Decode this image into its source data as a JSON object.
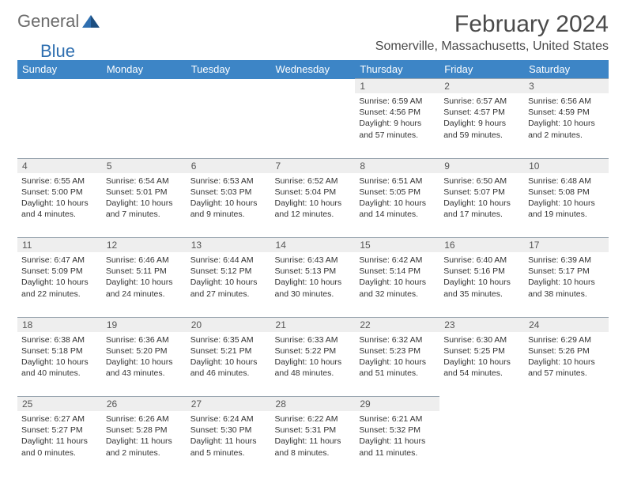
{
  "brand": {
    "part1": "General",
    "part2": "Blue"
  },
  "title": "February 2024",
  "location": "Somerville, Massachusetts, United States",
  "colors": {
    "header_bg": "#3d85c6",
    "header_fg": "#ffffff",
    "daynum_bg": "#eeeeee",
    "daynum_fg": "#555555",
    "sep": "#3d85c6",
    "daynum_border": "#9aa6b0",
    "text": "#333333",
    "title_color": "#4a4a4a",
    "logo_gray": "#6b6b6b",
    "logo_blue": "#2f6fb0"
  },
  "dow": [
    "Sunday",
    "Monday",
    "Tuesday",
    "Wednesday",
    "Thursday",
    "Friday",
    "Saturday"
  ],
  "weeks": [
    [
      null,
      null,
      null,
      null,
      {
        "n": "1",
        "sr": "Sunrise: 6:59 AM",
        "ss": "Sunset: 4:56 PM",
        "dl": "Daylight: 9 hours and 57 minutes."
      },
      {
        "n": "2",
        "sr": "Sunrise: 6:57 AM",
        "ss": "Sunset: 4:57 PM",
        "dl": "Daylight: 9 hours and 59 minutes."
      },
      {
        "n": "3",
        "sr": "Sunrise: 6:56 AM",
        "ss": "Sunset: 4:59 PM",
        "dl": "Daylight: 10 hours and 2 minutes."
      }
    ],
    [
      {
        "n": "4",
        "sr": "Sunrise: 6:55 AM",
        "ss": "Sunset: 5:00 PM",
        "dl": "Daylight: 10 hours and 4 minutes."
      },
      {
        "n": "5",
        "sr": "Sunrise: 6:54 AM",
        "ss": "Sunset: 5:01 PM",
        "dl": "Daylight: 10 hours and 7 minutes."
      },
      {
        "n": "6",
        "sr": "Sunrise: 6:53 AM",
        "ss": "Sunset: 5:03 PM",
        "dl": "Daylight: 10 hours and 9 minutes."
      },
      {
        "n": "7",
        "sr": "Sunrise: 6:52 AM",
        "ss": "Sunset: 5:04 PM",
        "dl": "Daylight: 10 hours and 12 minutes."
      },
      {
        "n": "8",
        "sr": "Sunrise: 6:51 AM",
        "ss": "Sunset: 5:05 PM",
        "dl": "Daylight: 10 hours and 14 minutes."
      },
      {
        "n": "9",
        "sr": "Sunrise: 6:50 AM",
        "ss": "Sunset: 5:07 PM",
        "dl": "Daylight: 10 hours and 17 minutes."
      },
      {
        "n": "10",
        "sr": "Sunrise: 6:48 AM",
        "ss": "Sunset: 5:08 PM",
        "dl": "Daylight: 10 hours and 19 minutes."
      }
    ],
    [
      {
        "n": "11",
        "sr": "Sunrise: 6:47 AM",
        "ss": "Sunset: 5:09 PM",
        "dl": "Daylight: 10 hours and 22 minutes."
      },
      {
        "n": "12",
        "sr": "Sunrise: 6:46 AM",
        "ss": "Sunset: 5:11 PM",
        "dl": "Daylight: 10 hours and 24 minutes."
      },
      {
        "n": "13",
        "sr": "Sunrise: 6:44 AM",
        "ss": "Sunset: 5:12 PM",
        "dl": "Daylight: 10 hours and 27 minutes."
      },
      {
        "n": "14",
        "sr": "Sunrise: 6:43 AM",
        "ss": "Sunset: 5:13 PM",
        "dl": "Daylight: 10 hours and 30 minutes."
      },
      {
        "n": "15",
        "sr": "Sunrise: 6:42 AM",
        "ss": "Sunset: 5:14 PM",
        "dl": "Daylight: 10 hours and 32 minutes."
      },
      {
        "n": "16",
        "sr": "Sunrise: 6:40 AM",
        "ss": "Sunset: 5:16 PM",
        "dl": "Daylight: 10 hours and 35 minutes."
      },
      {
        "n": "17",
        "sr": "Sunrise: 6:39 AM",
        "ss": "Sunset: 5:17 PM",
        "dl": "Daylight: 10 hours and 38 minutes."
      }
    ],
    [
      {
        "n": "18",
        "sr": "Sunrise: 6:38 AM",
        "ss": "Sunset: 5:18 PM",
        "dl": "Daylight: 10 hours and 40 minutes."
      },
      {
        "n": "19",
        "sr": "Sunrise: 6:36 AM",
        "ss": "Sunset: 5:20 PM",
        "dl": "Daylight: 10 hours and 43 minutes."
      },
      {
        "n": "20",
        "sr": "Sunrise: 6:35 AM",
        "ss": "Sunset: 5:21 PM",
        "dl": "Daylight: 10 hours and 46 minutes."
      },
      {
        "n": "21",
        "sr": "Sunrise: 6:33 AM",
        "ss": "Sunset: 5:22 PM",
        "dl": "Daylight: 10 hours and 48 minutes."
      },
      {
        "n": "22",
        "sr": "Sunrise: 6:32 AM",
        "ss": "Sunset: 5:23 PM",
        "dl": "Daylight: 10 hours and 51 minutes."
      },
      {
        "n": "23",
        "sr": "Sunrise: 6:30 AM",
        "ss": "Sunset: 5:25 PM",
        "dl": "Daylight: 10 hours and 54 minutes."
      },
      {
        "n": "24",
        "sr": "Sunrise: 6:29 AM",
        "ss": "Sunset: 5:26 PM",
        "dl": "Daylight: 10 hours and 57 minutes."
      }
    ],
    [
      {
        "n": "25",
        "sr": "Sunrise: 6:27 AM",
        "ss": "Sunset: 5:27 PM",
        "dl": "Daylight: 11 hours and 0 minutes."
      },
      {
        "n": "26",
        "sr": "Sunrise: 6:26 AM",
        "ss": "Sunset: 5:28 PM",
        "dl": "Daylight: 11 hours and 2 minutes."
      },
      {
        "n": "27",
        "sr": "Sunrise: 6:24 AM",
        "ss": "Sunset: 5:30 PM",
        "dl": "Daylight: 11 hours and 5 minutes."
      },
      {
        "n": "28",
        "sr": "Sunrise: 6:22 AM",
        "ss": "Sunset: 5:31 PM",
        "dl": "Daylight: 11 hours and 8 minutes."
      },
      {
        "n": "29",
        "sr": "Sunrise: 6:21 AM",
        "ss": "Sunset: 5:32 PM",
        "dl": "Daylight: 11 hours and 11 minutes."
      },
      null,
      null
    ]
  ]
}
